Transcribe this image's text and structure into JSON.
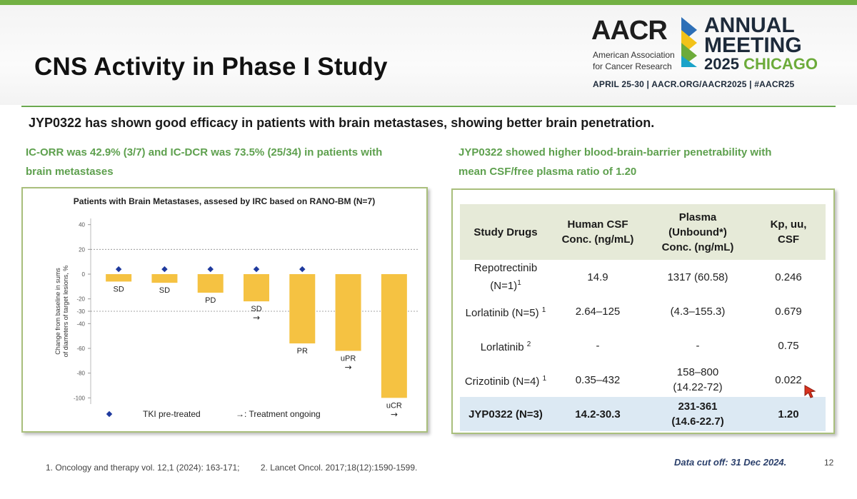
{
  "slide": {
    "title": "CNS Activity in Phase I Study",
    "headline": "JYP0322 has shown good efficacy in patients with brain metastases, showing better brain penetration.",
    "left_sub_line1": "IC-ORR was 42.9% (3/7) and IC-DCR  was 73.5% (25/34) in patients with",
    "left_sub_line2": "brain metastases",
    "right_sub_line1": "JYP0322 showed higher blood-brain-barrier penetrability with",
    "right_sub_line2": "mean CSF/free plasma ratio of 1.20",
    "footnote1": "1. Oncology and therapy vol. 12,1 (2024): 163-171;",
    "footnote2": "2. Lancet Oncol. 2017;18(12):1590-1599.",
    "data_cutoff": "Data cut off:  31 Dec 2024.",
    "page_number": "12",
    "accent_green": "#6aa84f",
    "bar_color": "#f5c242",
    "marker_color": "#1f3a9e"
  },
  "logo": {
    "aacr": "AACR",
    "org_line1": "American Association",
    "org_line2": "for Cancer Research",
    "meeting_line1": "ANNUAL",
    "meeting_line2": "MEETING",
    "meeting_year": "2025",
    "meeting_city": "CHICAGO",
    "info": "APRIL 25-30  |  AACR.ORG/AACR2025  |  #AACR25"
  },
  "chart_data": {
    "type": "bar",
    "title": "Patients with Brain Metastases, assesed by IRC based on RANO-BM (N=7)",
    "ylabel": "Change from baseline in sums of diameters of target lesions, %",
    "ylabel_line1": "Change from baseline in sums",
    "ylabel_line2": "of diameters of target lesions, %",
    "ylim": [
      -105,
      45
    ],
    "yticks": [
      40,
      20,
      0,
      -20,
      -30,
      -40,
      -60,
      -80,
      -100
    ],
    "reference_lines": [
      20,
      -30
    ],
    "values": [
      -6,
      -7,
      -15,
      -22,
      -56,
      -62,
      -100
    ],
    "responses": [
      "SD",
      "SD",
      "PD",
      "SD",
      "PR",
      "uPR",
      "uCR"
    ],
    "tki_pretreated": [
      true,
      true,
      true,
      true,
      true,
      false,
      false
    ],
    "ongoing": [
      false,
      false,
      false,
      true,
      false,
      true,
      true
    ],
    "ongoing_symbol": "→",
    "legend_tki": "TKI pre-treated",
    "legend_ongoing": "→: Treatment ongoing",
    "grid": false
  },
  "table": {
    "headers": [
      "Study Drugs",
      "Human CSF\nConc. (ng/mL)",
      "Plasma\n(Unbound*)\nConc. (ng/mL)",
      "Kp, uu,\nCSF"
    ],
    "rows": [
      {
        "drug": "Repotrectinib",
        "drug2": "(N=1)",
        "sup": "1",
        "csf": "14.9",
        "plasma": "1317 (60.58)",
        "kp": "0.246"
      },
      {
        "drug": "Lorlatinib (N=5)",
        "drug2": "",
        "sup": "1",
        "csf": "2.64–125",
        "plasma": "(4.3–155.3)",
        "kp": "0.679"
      },
      {
        "drug": "Lorlatinib",
        "drug2": "",
        "sup": "2",
        "csf": "-",
        "plasma": "-",
        "kp": "0.75"
      },
      {
        "drug": "Crizotinib (N=4)",
        "drug2": "",
        "sup": "1",
        "csf": "0.35–432",
        "plasma": "158–800\n(14.22-72)",
        "kp": "0.022"
      },
      {
        "drug": "JYP0322 (N=3)",
        "drug2": "",
        "sup": "",
        "csf": "14.2-30.3",
        "plasma": "231-361\n(14.6-22.7)",
        "kp": "1.20"
      }
    ]
  }
}
